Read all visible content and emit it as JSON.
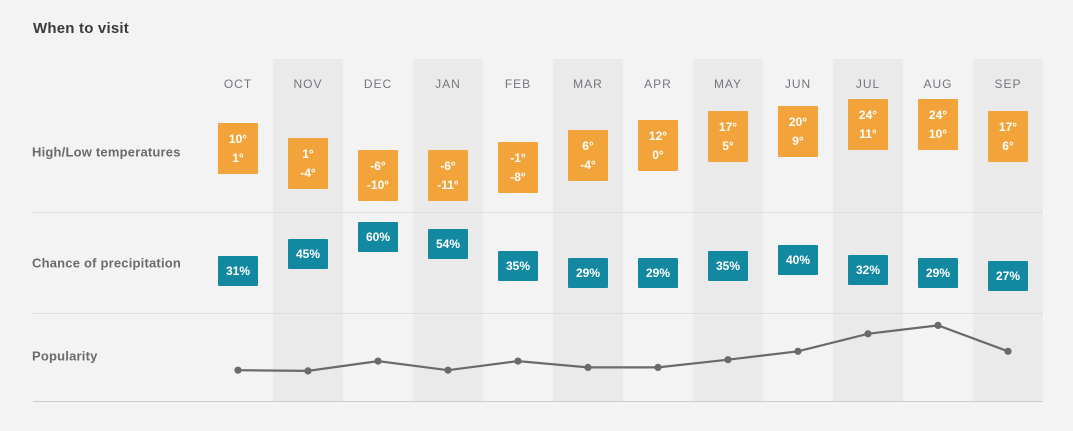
{
  "title": "When to visit",
  "rows": {
    "temperatures_label": "High/Low temperatures",
    "precipitation_label": "Chance of precipitation",
    "popularity_label": "Popularity"
  },
  "colors": {
    "temp_box": "#f2a43b",
    "precip_box": "#1289a0",
    "popularity_line": "#6a6a6a",
    "column_band": "#eaeaea",
    "background": "#f3f3f3"
  },
  "chart_data": [
    {
      "type": "bar",
      "name": "high_low_temperatures",
      "title": "High/Low temperatures",
      "categories": [
        "OCT",
        "NOV",
        "DEC",
        "JAN",
        "FEB",
        "MAR",
        "APR",
        "MAY",
        "JUN",
        "JUL",
        "AUG",
        "SEP"
      ],
      "series": [
        {
          "name": "High",
          "unit": "°",
          "values": [
            10,
            1,
            -6,
            -6,
            -1,
            6,
            12,
            17,
            20,
            24,
            24,
            17
          ]
        },
        {
          "name": "Low",
          "unit": "°",
          "values": [
            1,
            -4,
            -10,
            -11,
            -8,
            -4,
            0,
            5,
            9,
            11,
            10,
            6
          ]
        }
      ]
    },
    {
      "type": "bar",
      "name": "chance_of_precipitation",
      "title": "Chance of precipitation",
      "categories": [
        "OCT",
        "NOV",
        "DEC",
        "JAN",
        "FEB",
        "MAR",
        "APR",
        "MAY",
        "JUN",
        "JUL",
        "AUG",
        "SEP"
      ],
      "unit": "%",
      "values": [
        31,
        45,
        60,
        54,
        35,
        29,
        29,
        35,
        40,
        32,
        29,
        27
      ]
    },
    {
      "type": "line",
      "name": "popularity",
      "title": "Popularity",
      "categories": [
        "OCT",
        "NOV",
        "DEC",
        "JAN",
        "FEB",
        "MAR",
        "APR",
        "MAY",
        "JUN",
        "JUL",
        "AUG",
        "SEP"
      ],
      "scale": "relative 0-1",
      "values": [
        0.14,
        0.13,
        0.27,
        0.14,
        0.27,
        0.18,
        0.18,
        0.29,
        0.41,
        0.66,
        0.78,
        0.41
      ]
    }
  ]
}
